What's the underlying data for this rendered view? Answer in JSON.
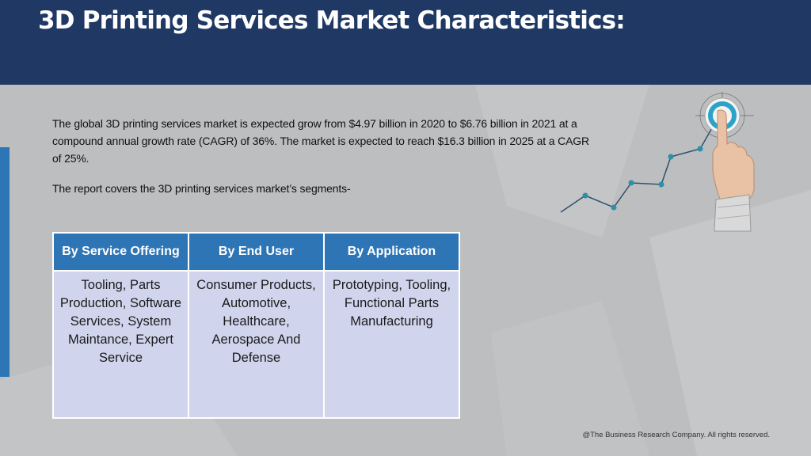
{
  "header": {
    "title": "3D Printing Services Market Characteristics:"
  },
  "intro": {
    "paragraph": "The global 3D printing services market is expected grow from $4.97 billion in 2020 to $6.76 billion in 2021 at a compound annual growth rate (CAGR) of 36%. The market is expected to reach $16.3 billion in 2025 at a CAGR of 25%.",
    "segments_line": "The report covers the 3D printing services market’s segments-"
  },
  "table": {
    "headers": [
      "By Service Offering",
      "By End User",
      "By Application"
    ],
    "rows": [
      [
        "Tooling, Parts Production, Software Services, System Maintance, Expert Service",
        "Consumer Products, Automotive, Healthcare, Aerospace And Defense",
        "Prototyping, Tooling, Functional Parts Manufacturing"
      ]
    ]
  },
  "footer": {
    "copyright": "@The Business Research Company. All rights reserved."
  },
  "colors": {
    "header_bg": "#1f3864",
    "accent": "#2e75b6",
    "table_cell": "#d0d5ed",
    "background": "#bdbec0"
  },
  "illustration": {
    "icon": "growth-chart-target-hand-icon"
  }
}
